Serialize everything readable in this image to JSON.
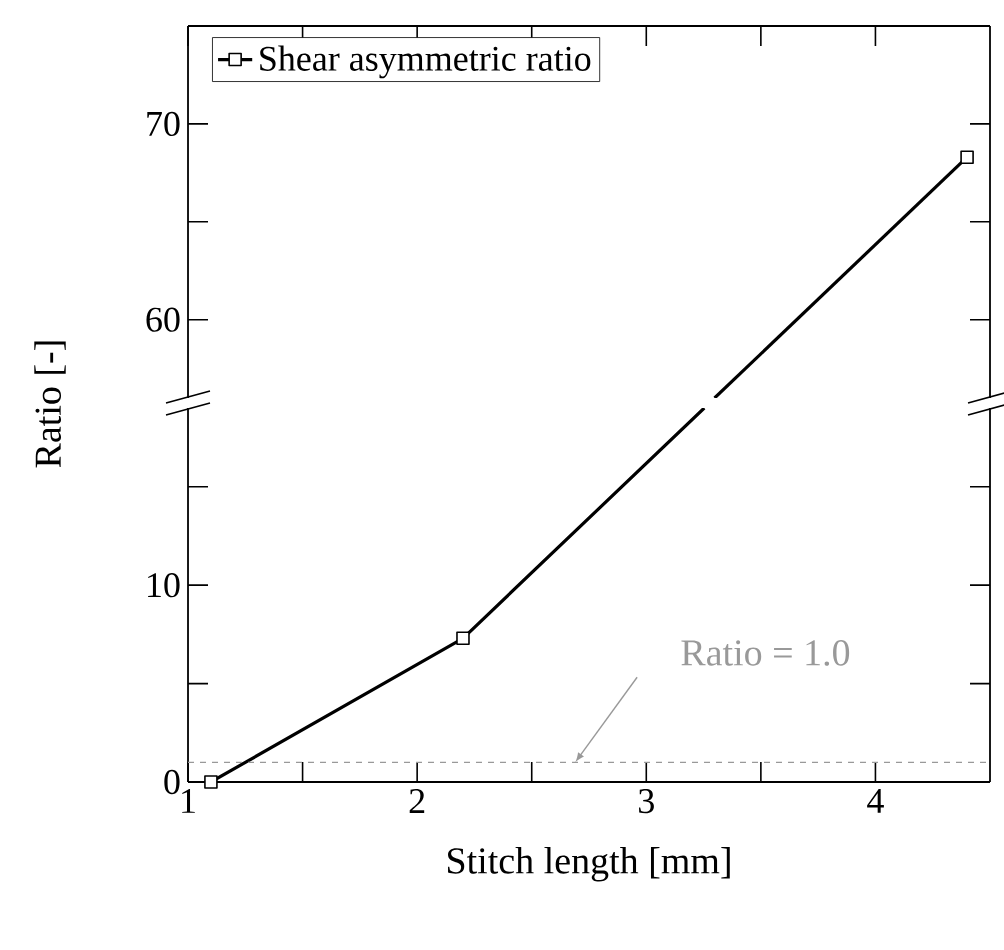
{
  "chart_data": [
    {
      "type": "line",
      "ylabel": "Ratio [-]",
      "xlim": [
        1,
        4.5
      ],
      "ylim": [
        56,
        75
      ],
      "xticks": [
        {
          "value": 1,
          "label": null
        },
        {
          "value": 1.5,
          "label": null
        },
        {
          "value": 2,
          "label": null
        },
        {
          "value": 2.5,
          "label": null
        },
        {
          "value": 3,
          "label": null
        },
        {
          "value": 3.5,
          "label": null
        },
        {
          "value": 4,
          "label": null
        }
      ],
      "yticks": [
        60,
        {
          "value": 65,
          "label": null
        },
        70
      ],
      "tick_labels": "y",
      "legend": "top left",
      "marker": "square",
      "line_style": "solid",
      "grid": false,
      "series": [
        {
          "name": "Shear asymmetric ratio",
          "color": "#000000",
          "x": [
            3.298,
            4.4
          ],
          "values": [
            56,
            68.3
          ]
        }
      ]
    },
    {
      "type": "line",
      "xlabel": "Stitch length [mm]",
      "xlim": [
        1,
        4.5
      ],
      "ylim": [
        0,
        19
      ],
      "xticks": [
        1,
        {
          "value": 1.5,
          "label": null
        },
        2,
        {
          "value": 2.5,
          "label": null
        },
        3,
        {
          "value": 3.5,
          "label": null
        },
        4
      ],
      "yticks": [
        0,
        {
          "value": 5,
          "label": null
        },
        10,
        {
          "value": 15,
          "label": null
        }
      ],
      "marker": "square",
      "line_style": "solid",
      "grid": false,
      "ref_lines": [
        {
          "axis": "y",
          "value": 1,
          "label": "Ratio = 1.0",
          "color": "#999999",
          "line_style": "dashed"
        }
      ],
      "series": [
        {
          "color": "#000000",
          "x": [
            1.1,
            2.2,
            3.253
          ],
          "values": [
            0,
            7.3,
            19
          ]
        }
      ]
    }
  ]
}
